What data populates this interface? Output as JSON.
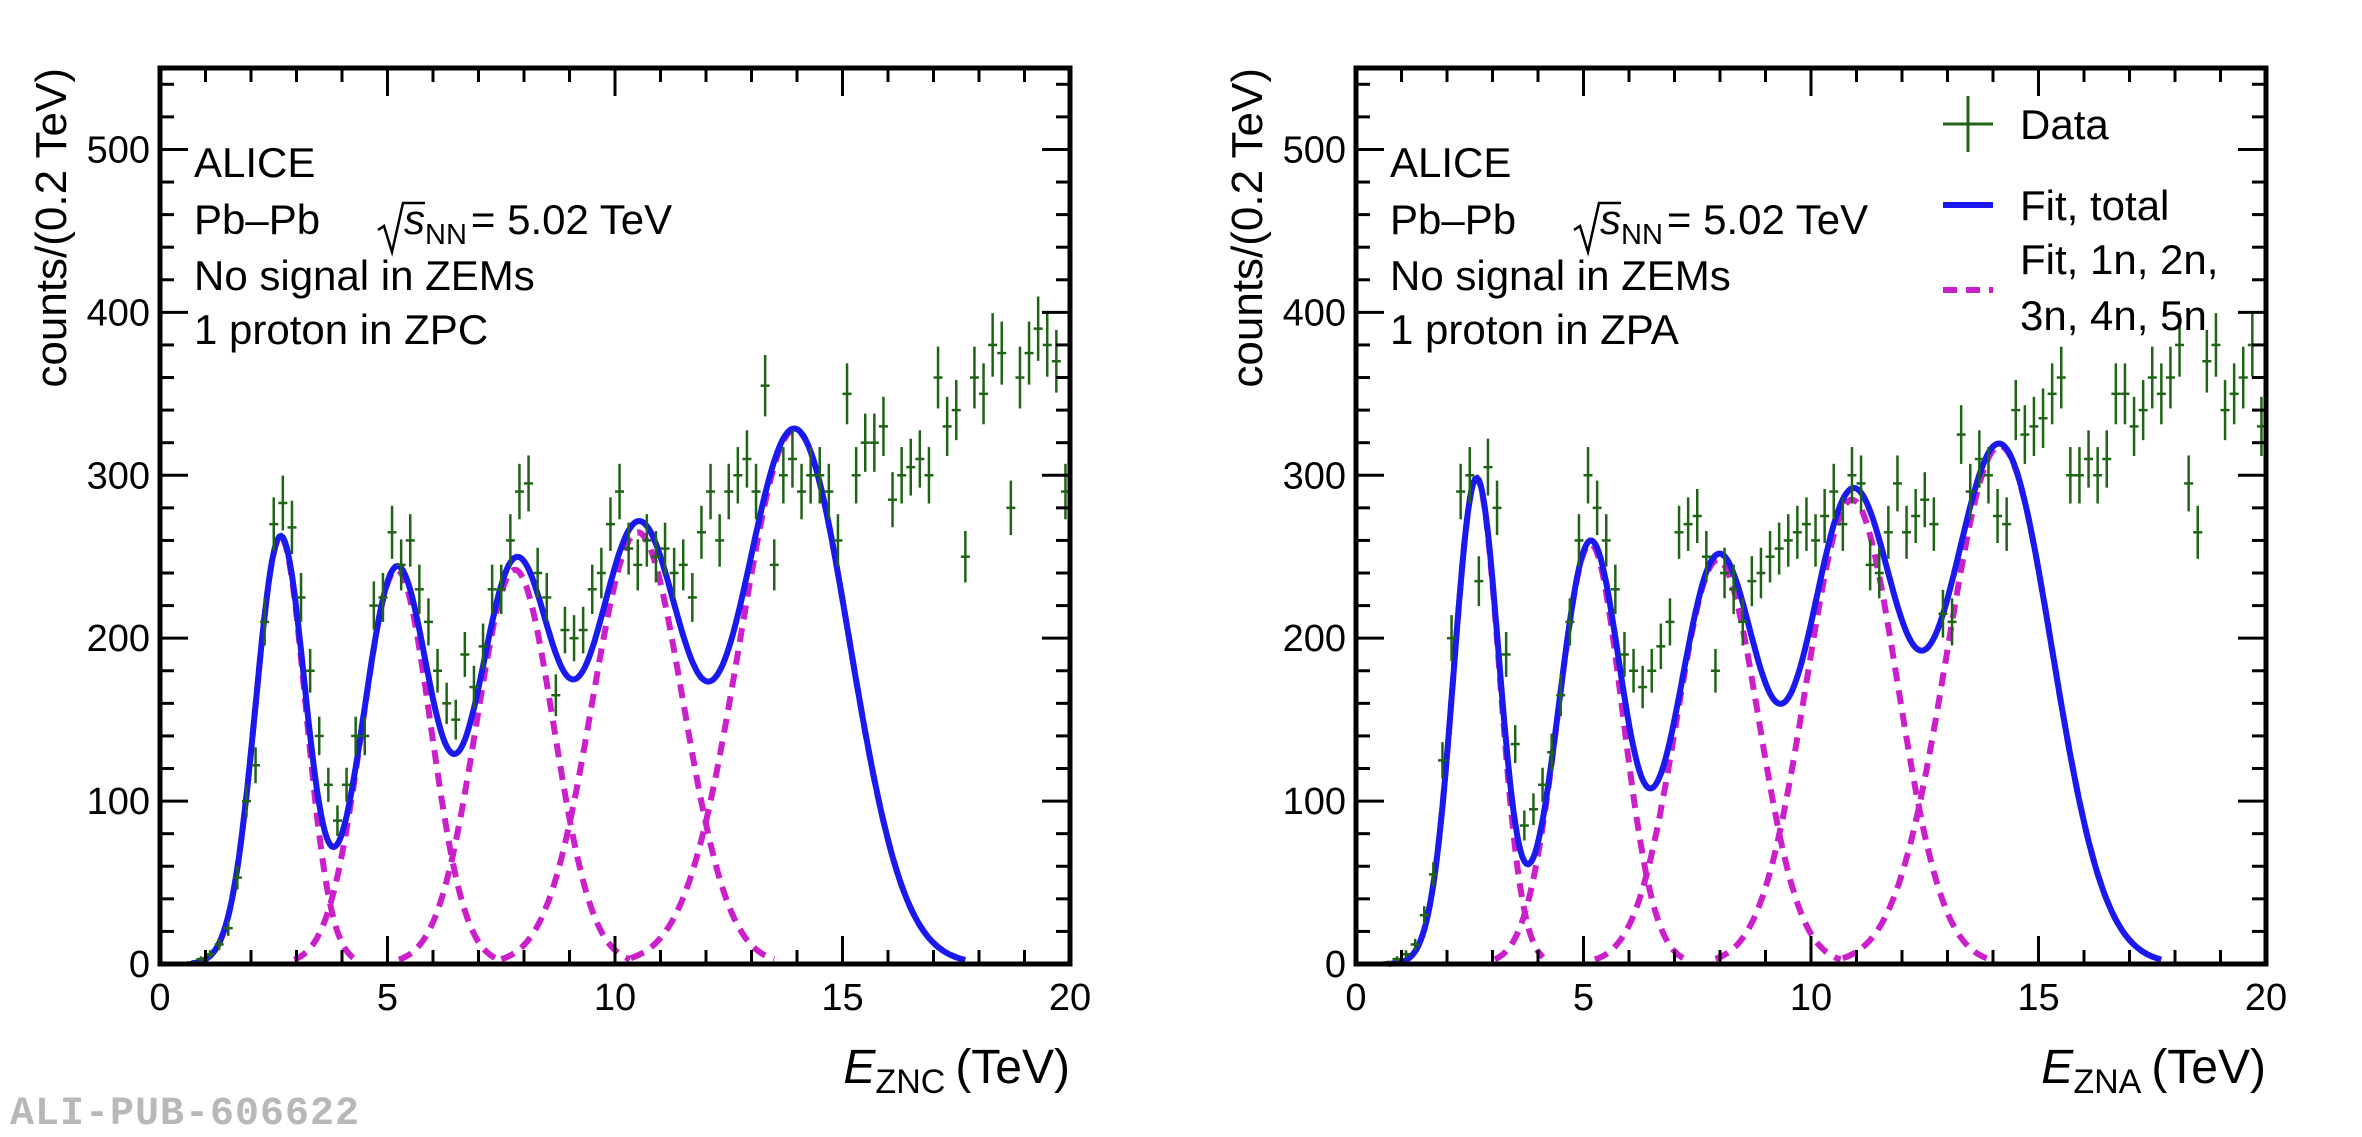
{
  "watermark": "ALI-PUB-606622",
  "legend": {
    "data": "Data",
    "fit_total": "Fit, total",
    "fit_components_line1": "Fit, 1n, 2n,",
    "fit_components_line2": "3n, 4n, 5n"
  },
  "colors": {
    "data": "#1e6414",
    "fit_total": "#1a1aee",
    "fit_components": "#cc1fcc"
  },
  "chart_data": [
    {
      "type": "scatter",
      "panel": "left",
      "labels": {
        "experiment": "ALICE",
        "system": "Pb–Pb",
        "sqrt": "s",
        "sub": "NN",
        "energy": "= 5.02 TeV",
        "line3": "No signal in ZEMs",
        "line4": "1 proton in ZPC"
      },
      "ylabel": "counts/(0.2 TeV)",
      "xlabel_main": "E",
      "xlabel_sub": "ZNC",
      "xlabel_unit": "(TeV)",
      "xlim": [
        0,
        20
      ],
      "ylim": [
        0,
        550
      ],
      "xticks": [
        0,
        5,
        10,
        15,
        20
      ],
      "yticks": [
        0,
        100,
        200,
        300,
        400,
        500
      ],
      "xtick_labels": [
        "0",
        "5",
        "10",
        "15",
        "20"
      ],
      "ytick_labels": [
        "0",
        "100",
        "200",
        "300",
        "400",
        "500"
      ],
      "components": [
        {
          "amp": 262,
          "mean": 2.65,
          "sigma": 0.55
        },
        {
          "amp": 242,
          "mean": 5.2,
          "sigma": 0.75
        },
        {
          "amp": 242,
          "mean": 7.8,
          "sigma": 0.85
        },
        {
          "amp": 265,
          "mean": 10.5,
          "sigma": 1.0
        },
        {
          "amp": 328,
          "mean": 13.95,
          "sigma": 1.2
        }
      ],
      "data_points": [
        [
          0.5,
          0
        ],
        [
          0.7,
          1
        ],
        [
          0.9,
          3
        ],
        [
          1.1,
          6
        ],
        [
          1.3,
          12
        ],
        [
          1.5,
          22
        ],
        [
          1.7,
          53
        ],
        [
          1.9,
          100
        ],
        [
          2.1,
          122
        ],
        [
          2.3,
          210
        ],
        [
          2.5,
          270
        ],
        [
          2.7,
          283
        ],
        [
          2.9,
          268
        ],
        [
          3.1,
          225
        ],
        [
          3.3,
          180
        ],
        [
          3.5,
          140
        ],
        [
          3.7,
          110
        ],
        [
          3.9,
          88
        ],
        [
          4.1,
          110
        ],
        [
          4.3,
          140
        ],
        [
          4.5,
          140
        ],
        [
          4.7,
          220
        ],
        [
          4.9,
          225
        ],
        [
          5.1,
          265
        ],
        [
          5.3,
          245
        ],
        [
          5.5,
          260
        ],
        [
          5.7,
          230
        ],
        [
          5.9,
          210
        ],
        [
          6.1,
          180
        ],
        [
          6.3,
          160
        ],
        [
          6.5,
          150
        ],
        [
          6.7,
          190
        ],
        [
          6.9,
          170
        ],
        [
          7.1,
          195
        ],
        [
          7.3,
          230
        ],
        [
          7.5,
          230
        ],
        [
          7.7,
          260
        ],
        [
          7.9,
          290
        ],
        [
          8.1,
          295
        ],
        [
          8.3,
          240
        ],
        [
          8.5,
          225
        ],
        [
          8.7,
          165
        ],
        [
          8.9,
          205
        ],
        [
          9.1,
          200
        ],
        [
          9.3,
          205
        ],
        [
          9.5,
          230
        ],
        [
          9.7,
          240
        ],
        [
          9.9,
          270
        ],
        [
          10.1,
          290
        ],
        [
          10.3,
          255
        ],
        [
          10.5,
          245
        ],
        [
          10.7,
          260
        ],
        [
          10.9,
          250
        ],
        [
          11.1,
          255
        ],
        [
          11.3,
          240
        ],
        [
          11.5,
          245
        ],
        [
          11.7,
          225
        ],
        [
          11.9,
          265
        ],
        [
          12.1,
          290
        ],
        [
          12.3,
          260
        ],
        [
          12.5,
          290
        ],
        [
          12.7,
          300
        ],
        [
          12.9,
          310
        ],
        [
          13.1,
          290
        ],
        [
          13.3,
          355
        ],
        [
          13.5,
          245
        ],
        [
          13.7,
          300
        ],
        [
          13.9,
          310
        ],
        [
          14.1,
          290
        ],
        [
          14.3,
          300
        ],
        [
          14.5,
          300
        ],
        [
          14.7,
          290
        ],
        [
          14.9,
          260
        ],
        [
          15.1,
          350
        ],
        [
          15.3,
          300
        ],
        [
          15.5,
          320
        ],
        [
          15.7,
          320
        ],
        [
          15.9,
          330
        ],
        [
          16.1,
          285
        ],
        [
          16.3,
          300
        ],
        [
          16.5,
          305
        ],
        [
          16.7,
          310
        ],
        [
          16.9,
          300
        ],
        [
          17.1,
          360
        ],
        [
          17.3,
          330
        ],
        [
          17.5,
          340
        ],
        [
          17.7,
          250
        ],
        [
          17.9,
          360
        ],
        [
          18.1,
          350
        ],
        [
          18.3,
          380
        ],
        [
          18.5,
          375
        ],
        [
          18.7,
          280
        ],
        [
          18.9,
          360
        ],
        [
          19.1,
          375
        ],
        [
          19.3,
          390
        ],
        [
          19.5,
          380
        ],
        [
          19.7,
          370
        ],
        [
          19.9,
          290
        ]
      ]
    },
    {
      "type": "scatter",
      "panel": "right",
      "labels": {
        "experiment": "ALICE",
        "system": "Pb–Pb",
        "sqrt": "s",
        "sub": "NN",
        "energy": "= 5.02 TeV",
        "line3": "No signal in ZEMs",
        "line4": "1 proton in ZPA"
      },
      "ylabel": "counts/(0.2 TeV)",
      "xlabel_main": "E",
      "xlabel_sub": "ZNA",
      "xlabel_unit": "(TeV)",
      "xlim": [
        0,
        20
      ],
      "ylim": [
        0,
        550
      ],
      "xticks": [
        0,
        5,
        10,
        15,
        20
      ],
      "yticks": [
        0,
        100,
        200,
        300,
        400,
        500
      ],
      "xtick_labels": [
        "0",
        "5",
        "10",
        "15",
        "20"
      ],
      "ytick_labels": [
        "0",
        "100",
        "200",
        "300",
        "400",
        "500"
      ],
      "components": [
        {
          "amp": 298,
          "mean": 2.65,
          "sigma": 0.5
        },
        {
          "amp": 258,
          "mean": 5.15,
          "sigma": 0.7
        },
        {
          "amp": 248,
          "mean": 7.95,
          "sigma": 0.9
        },
        {
          "amp": 285,
          "mean": 10.9,
          "sigma": 1.0
        },
        {
          "amp": 318,
          "mean": 14.15,
          "sigma": 1.15
        }
      ],
      "data_points": [
        [
          0.5,
          0
        ],
        [
          0.7,
          1
        ],
        [
          0.9,
          3
        ],
        [
          1.1,
          6
        ],
        [
          1.3,
          12
        ],
        [
          1.5,
          30
        ],
        [
          1.7,
          55
        ],
        [
          1.9,
          125
        ],
        [
          2.1,
          200
        ],
        [
          2.3,
          290
        ],
        [
          2.5,
          300
        ],
        [
          2.7,
          235
        ],
        [
          2.9,
          305
        ],
        [
          3.1,
          280
        ],
        [
          3.3,
          190
        ],
        [
          3.5,
          135
        ],
        [
          3.7,
          85
        ],
        [
          3.9,
          95
        ],
        [
          4.1,
          110
        ],
        [
          4.3,
          130
        ],
        [
          4.5,
          165
        ],
        [
          4.7,
          210
        ],
        [
          4.9,
          260
        ],
        [
          5.1,
          300
        ],
        [
          5.3,
          280
        ],
        [
          5.5,
          260
        ],
        [
          5.7,
          230
        ],
        [
          5.9,
          190
        ],
        [
          6.1,
          180
        ],
        [
          6.3,
          170
        ],
        [
          6.5,
          180
        ],
        [
          6.7,
          195
        ],
        [
          6.9,
          210
        ],
        [
          7.1,
          265
        ],
        [
          7.3,
          270
        ],
        [
          7.5,
          275
        ],
        [
          7.7,
          250
        ],
        [
          7.9,
          180
        ],
        [
          8.1,
          240
        ],
        [
          8.3,
          230
        ],
        [
          8.5,
          210
        ],
        [
          8.7,
          235
        ],
        [
          8.9,
          240
        ],
        [
          9.1,
          250
        ],
        [
          9.3,
          255
        ],
        [
          9.5,
          260
        ],
        [
          9.7,
          265
        ],
        [
          9.9,
          270
        ],
        [
          10.1,
          260
        ],
        [
          10.3,
          275
        ],
        [
          10.5,
          290
        ],
        [
          10.7,
          270
        ],
        [
          10.9,
          300
        ],
        [
          11.1,
          295
        ],
        [
          11.3,
          245
        ],
        [
          11.5,
          240
        ],
        [
          11.7,
          265
        ],
        [
          11.9,
          295
        ],
        [
          12.1,
          265
        ],
        [
          12.3,
          275
        ],
        [
          12.5,
          285
        ],
        [
          12.7,
          270
        ],
        [
          12.9,
          215
        ],
        [
          13.1,
          210
        ],
        [
          13.3,
          325
        ],
        [
          13.5,
          290
        ],
        [
          13.7,
          310
        ],
        [
          13.9,
          300
        ],
        [
          14.1,
          275
        ],
        [
          14.3,
          270
        ],
        [
          14.5,
          340
        ],
        [
          14.7,
          325
        ],
        [
          14.9,
          330
        ],
        [
          15.1,
          335
        ],
        [
          15.3,
          350
        ],
        [
          15.5,
          360
        ],
        [
          15.7,
          300
        ],
        [
          15.9,
          300
        ],
        [
          16.1,
          310
        ],
        [
          16.3,
          300
        ],
        [
          16.5,
          310
        ],
        [
          16.7,
          350
        ],
        [
          16.9,
          350
        ],
        [
          17.1,
          330
        ],
        [
          17.3,
          340
        ],
        [
          17.5,
          360
        ],
        [
          17.7,
          350
        ],
        [
          17.9,
          360
        ],
        [
          18.1,
          380
        ],
        [
          18.3,
          295
        ],
        [
          18.5,
          265
        ],
        [
          18.7,
          370
        ],
        [
          18.9,
          380
        ],
        [
          19.1,
          340
        ],
        [
          19.3,
          350
        ],
        [
          19.5,
          360
        ],
        [
          19.7,
          380
        ],
        [
          19.9,
          330
        ]
      ]
    }
  ]
}
